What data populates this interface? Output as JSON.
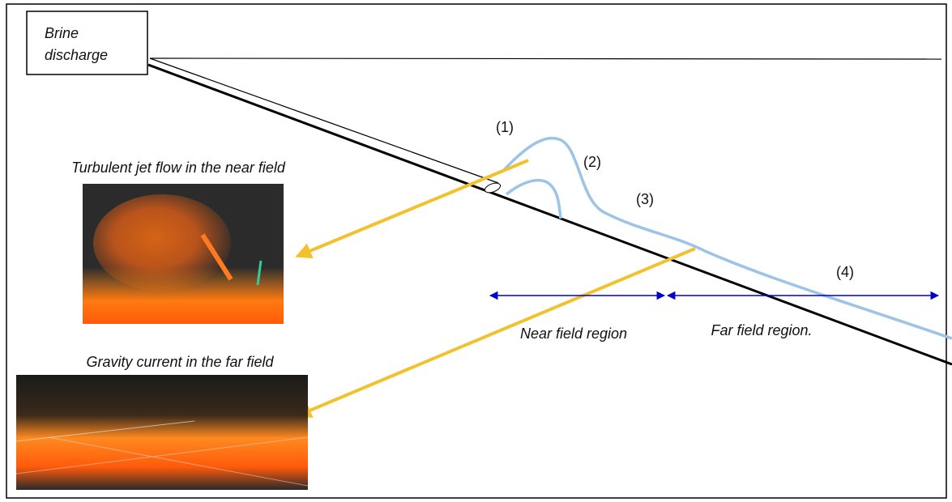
{
  "source_box": {
    "lines": [
      "Brine",
      "discharge"
    ]
  },
  "stages": [
    "(1)",
    "(2)",
    "(3)",
    "(4)"
  ],
  "photos": [
    {
      "caption": "Turbulent jet flow in the near field"
    },
    {
      "caption": "Gravity current in the far field"
    }
  ],
  "regions": [
    "Near field region",
    "Far field region."
  ]
}
